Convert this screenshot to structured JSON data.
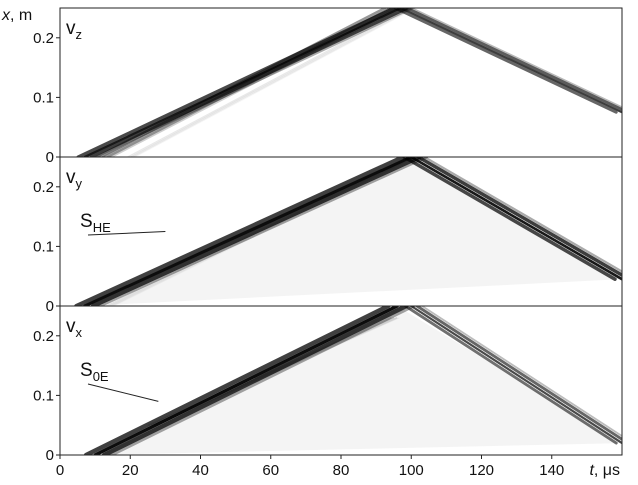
{
  "chart_data": {
    "type": "heatmap",
    "xlabel": {
      "var": "t",
      "unit": "μs"
    },
    "ylabel": {
      "var": "x",
      "unit": "m"
    },
    "xlim": [
      0,
      160
    ],
    "ylim": [
      0,
      0.25
    ],
    "xticks": [
      "0",
      "20",
      "40",
      "60",
      "80",
      "100",
      "120",
      "140"
    ],
    "yticks": [
      "0",
      "0.1",
      "0.2"
    ],
    "panels": [
      {
        "label": "v",
        "label_sub": "z",
        "waves": [
          {
            "t": [
              7,
              97
            ],
            "x": [
              0,
              0.25
            ],
            "strength": 0.95,
            "width": 2.0
          },
          {
            "t": [
              12,
              94
            ],
            "x": [
              0,
              0.25
            ],
            "strength": 0.55,
            "width": 1.6
          },
          {
            "t": [
              97,
              160
            ],
            "x": [
              0.25,
              0.075
            ],
            "strength": 0.8,
            "width": 1.8
          },
          {
            "t": [
              20,
              100
            ],
            "x": [
              0,
              0.25
            ],
            "strength": 0.12,
            "width": 0.8
          }
        ]
      },
      {
        "label": "v",
        "label_sub": "y",
        "annotation": {
          "text": "S",
          "sub": "HE",
          "point": [
            30,
            0.125
          ]
        },
        "waves": [
          {
            "t": [
              7,
              100
            ],
            "x": [
              0,
              0.25
            ],
            "strength": 1.0,
            "width": 2.6
          },
          {
            "t": [
              100,
              160
            ],
            "x": [
              0.25,
              0.045
            ],
            "strength": 0.95,
            "width": 2.2
          },
          {
            "t": [
              14,
              100
            ],
            "x": [
              0,
              0.25
            ],
            "strength": 0.1,
            "width": 0.8
          }
        ]
      },
      {
        "label": "v",
        "label_sub": "x",
        "annotation": {
          "text": "S",
          "sub": "0E",
          "point": [
            28,
            0.09
          ]
        },
        "waves": [
          {
            "t": [
              10,
              96
            ],
            "x": [
              0,
              0.25
            ],
            "strength": 1.0,
            "width": 2.8
          },
          {
            "t": [
              100,
              160
            ],
            "x": [
              0.25,
              0.02
            ],
            "strength": 0.75,
            "width": 1.8
          },
          {
            "t": [
              26,
              95
            ],
            "x": [
              0.05,
              0.23
            ],
            "strength": 0.18,
            "width": 0.9
          }
        ]
      }
    ]
  }
}
